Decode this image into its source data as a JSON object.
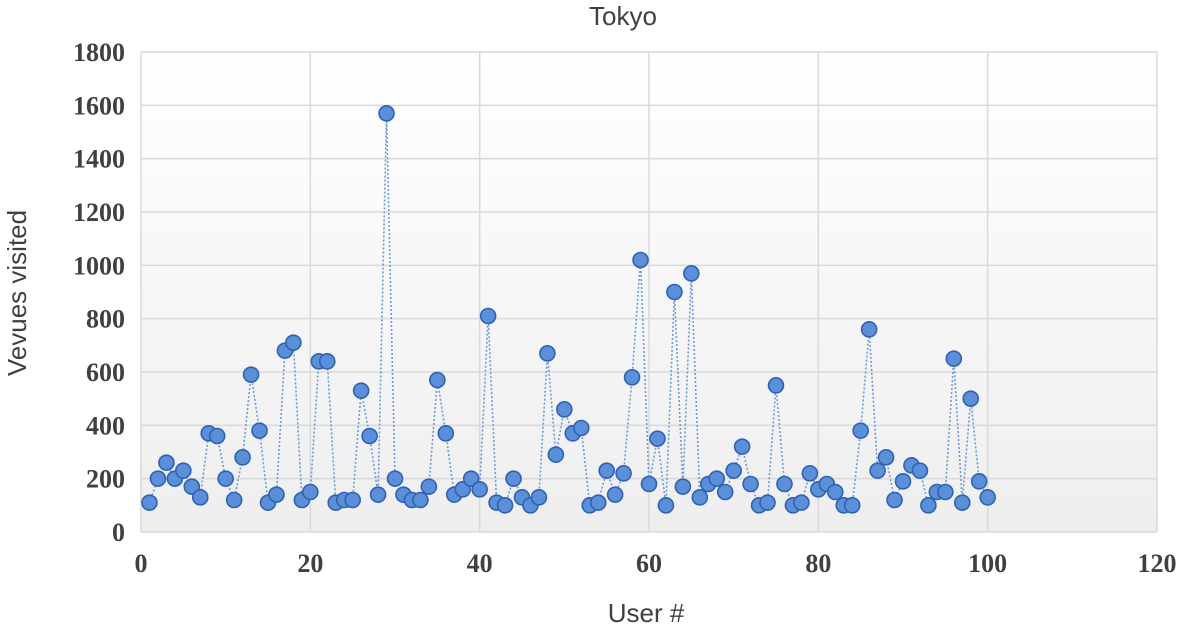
{
  "chart_data": {
    "type": "scatter",
    "title": "Tokyo",
    "xlabel": "User #",
    "ylabel": "Vevues visited",
    "xlim": [
      0,
      120
    ],
    "ylim": [
      0,
      1800
    ],
    "xticks": [
      0,
      20,
      40,
      60,
      80,
      100,
      120
    ],
    "yticks": [
      0,
      200,
      400,
      600,
      800,
      1000,
      1200,
      1400,
      1600,
      1800
    ],
    "grid": true,
    "legend": "none",
    "series_color": "#5b8fd9",
    "line_style": "dotted",
    "x": [
      1,
      2,
      3,
      4,
      5,
      6,
      7,
      8,
      9,
      10,
      11,
      12,
      13,
      14,
      15,
      16,
      17,
      18,
      19,
      20,
      21,
      22,
      23,
      24,
      25,
      26,
      27,
      28,
      29,
      30,
      31,
      32,
      33,
      34,
      35,
      36,
      37,
      38,
      39,
      40,
      41,
      42,
      43,
      44,
      45,
      46,
      47,
      48,
      49,
      50,
      51,
      52,
      53,
      54,
      55,
      56,
      57,
      58,
      59,
      60,
      61,
      62,
      63,
      64,
      65,
      66,
      67,
      68,
      69,
      70,
      71,
      72,
      73,
      74,
      75,
      76,
      77,
      78,
      79,
      80,
      81,
      82,
      83,
      84,
      85,
      86,
      87,
      88,
      89,
      90,
      91,
      92,
      93,
      94,
      95,
      96,
      97,
      98,
      99,
      100
    ],
    "y": [
      110,
      200,
      260,
      200,
      230,
      170,
      130,
      370,
      360,
      200,
      120,
      280,
      590,
      380,
      110,
      140,
      680,
      710,
      120,
      150,
      640,
      640,
      110,
      120,
      120,
      530,
      360,
      140,
      1570,
      200,
      140,
      120,
      120,
      170,
      570,
      370,
      140,
      160,
      200,
      160,
      810,
      110,
      100,
      200,
      130,
      100,
      130,
      670,
      290,
      460,
      370,
      390,
      100,
      110,
      230,
      140,
      220,
      580,
      1020,
      180,
      350,
      100,
      900,
      170,
      970,
      130,
      180,
      200,
      150,
      230,
      320,
      180,
      100,
      110,
      550,
      180,
      100,
      110,
      220,
      160,
      180,
      150,
      100,
      100,
      380,
      760,
      230,
      280,
      120,
      190,
      250,
      230,
      100,
      150,
      150,
      650,
      110,
      500,
      190,
      130
    ]
  }
}
